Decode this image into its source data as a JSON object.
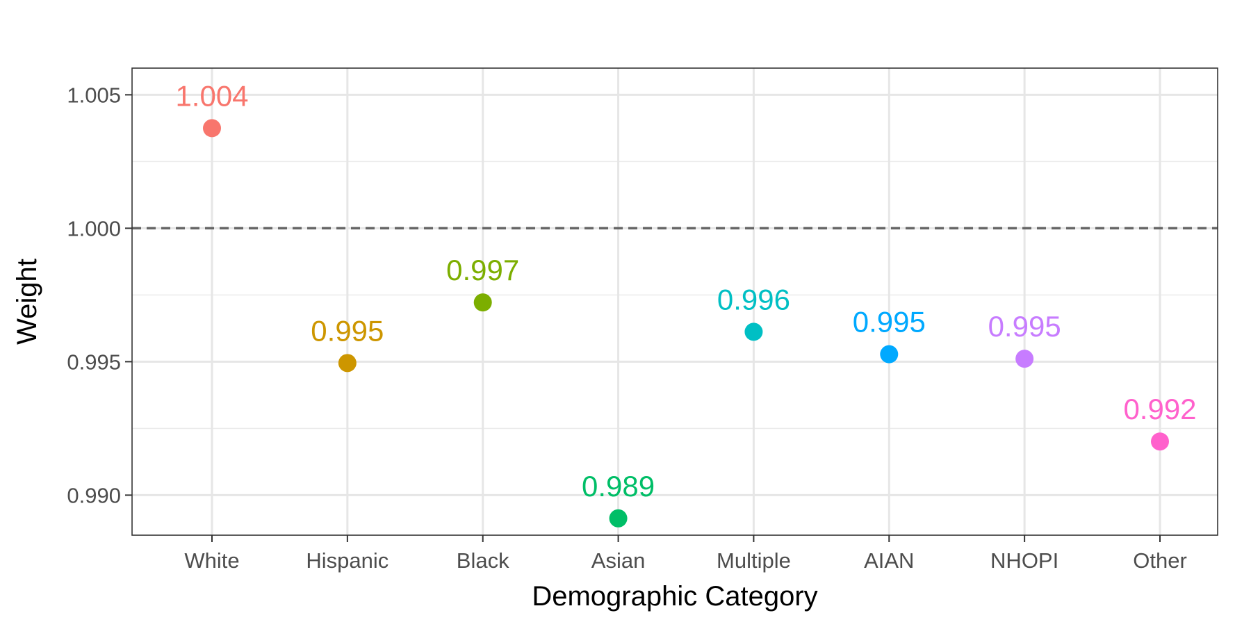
{
  "chart_data": {
    "type": "scatter",
    "title": "",
    "xlabel": "Demographic Category",
    "ylabel": "Weight",
    "categories": [
      "White",
      "Hispanic",
      "Black",
      "Asian",
      "Multiple",
      "AIAN",
      "NHOPI",
      "Other"
    ],
    "values": [
      1.00375,
      0.99495,
      0.99722,
      0.98913,
      0.99612,
      0.99528,
      0.99511,
      0.99201
    ],
    "labels": [
      "1.004",
      "0.995",
      "0.997",
      "0.989",
      "0.996",
      "0.995",
      "0.995",
      "0.992"
    ],
    "colors": [
      "#F8766D",
      "#CD9600",
      "#7CAE00",
      "#00BE67",
      "#00BFC4",
      "#00A9FF",
      "#C77CFF",
      "#FF61CC"
    ],
    "ylim": [
      0.9885,
      1.006
    ],
    "yticks": [
      0.99,
      0.995,
      1.0,
      1.005
    ],
    "ytick_labels": [
      "0.990",
      "0.995",
      "1.000",
      "1.005"
    ],
    "reference_line": {
      "y": 1.0,
      "style": "dashed",
      "color": "#666666"
    },
    "grid": true,
    "legend": "none"
  }
}
